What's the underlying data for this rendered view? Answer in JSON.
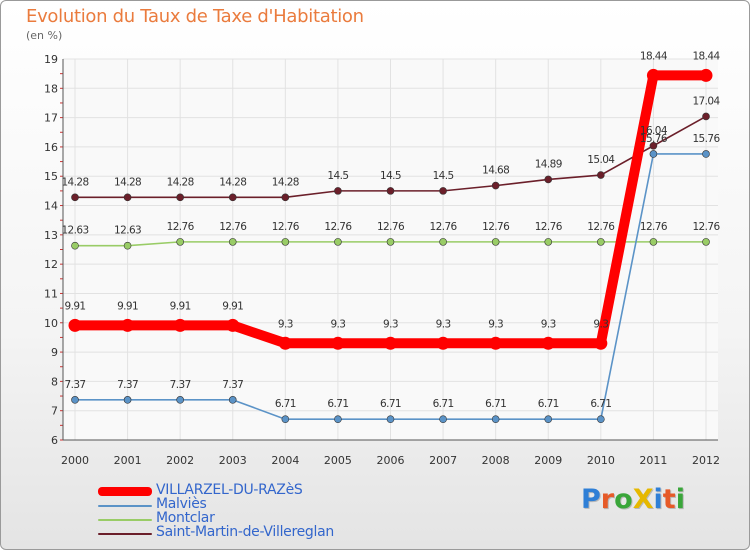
{
  "title": "Evolution du Taux de Taxe d'Habitation",
  "subtitle": "(en %)",
  "logo": {
    "text": "ProXiti",
    "colors": [
      "#2f7fd6",
      "#e65a28",
      "#3aa63a",
      "#e6b800",
      "#2f7fd6",
      "#e65a28",
      "#3aa63a"
    ]
  },
  "chart_data": {
    "type": "line",
    "title": "Evolution du Taux de Taxe d'Habitation",
    "ylabel": "(en %)",
    "xlabel": "",
    "x": [
      "2000",
      "2001",
      "2002",
      "2003",
      "2004",
      "2005",
      "2006",
      "2007",
      "2008",
      "2009",
      "2010",
      "2011",
      "2012"
    ],
    "ylim": [
      6,
      19
    ],
    "yticks": [
      "6",
      "7",
      "8",
      "9",
      "10",
      "11",
      "12",
      "13",
      "14",
      "15",
      "16",
      "17",
      "18",
      "19"
    ],
    "grid": true,
    "legend_position": "bottom-left",
    "series": [
      {
        "name": "VILLARZEL-DU-RAZèS",
        "color": "#ff0000",
        "values": [
          9.91,
          9.91,
          9.91,
          9.91,
          9.3,
          9.3,
          9.3,
          9.3,
          9.3,
          9.3,
          9.3,
          18.44,
          18.44
        ],
        "labels": [
          "9.91",
          "9.91",
          "9.91",
          "9.91",
          "9.3",
          "9.3",
          "9.3",
          "9.3",
          "9.3",
          "9.3",
          "9.3",
          "18.44",
          "18.44"
        ]
      },
      {
        "name": "Malviès",
        "color": "#5b93c7",
        "values": [
          7.37,
          7.37,
          7.37,
          7.37,
          6.71,
          6.71,
          6.71,
          6.71,
          6.71,
          6.71,
          6.71,
          15.76,
          15.76
        ],
        "labels": [
          "7.37",
          "7.37",
          "7.37",
          "7.37",
          "6.71",
          "6.71",
          "6.71",
          "6.71",
          "6.71",
          "6.71",
          "6.71",
          "15.76",
          "15.76"
        ]
      },
      {
        "name": "Montclar",
        "color": "#99cc66",
        "values": [
          12.63,
          12.63,
          12.76,
          12.76,
          12.76,
          12.76,
          12.76,
          12.76,
          12.76,
          12.76,
          12.76,
          12.76,
          12.76
        ],
        "labels": [
          "12.63",
          "12.63",
          "12.76",
          "12.76",
          "12.76",
          "12.76",
          "12.76",
          "12.76",
          "12.76",
          "12.76",
          "12.76",
          "12.76",
          "12.76"
        ]
      },
      {
        "name": "Saint-Martin-de-Villereglan",
        "color": "#6b1f2a",
        "values": [
          14.28,
          14.28,
          14.28,
          14.28,
          14.28,
          14.5,
          14.5,
          14.5,
          14.68,
          14.89,
          15.04,
          16.04,
          17.04
        ],
        "labels": [
          "14.28",
          "14.28",
          "14.28",
          "14.28",
          "14.28",
          "14.5",
          "14.5",
          "14.5",
          "14.68",
          "14.89",
          "15.04",
          "16.04",
          "17.04"
        ]
      }
    ]
  }
}
